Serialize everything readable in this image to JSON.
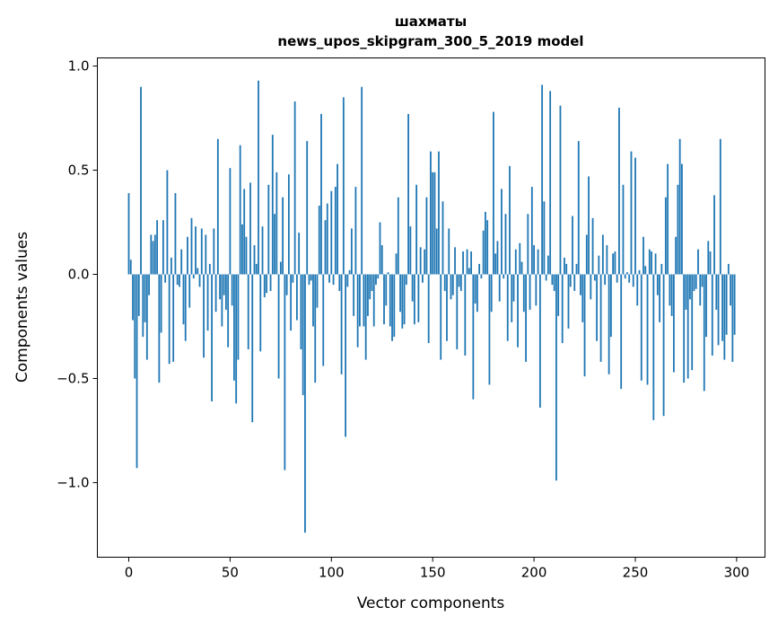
{
  "chart_data": {
    "type": "bar",
    "title": "шахматы",
    "subtitle": "news_upos_skipgram_300_5_2019 model",
    "xlabel": "Vector components",
    "ylabel": "Components values",
    "xlim": [
      -15.5,
      314
    ],
    "ylim": [
      -1.358,
      1.039
    ],
    "xticks": [
      0,
      50,
      100,
      150,
      200,
      250,
      300
    ],
    "xtick_labels": [
      "0",
      "50",
      "100",
      "150",
      "200",
      "250",
      "300"
    ],
    "yticks": [
      -1.0,
      -0.5,
      0.0,
      0.5,
      1.0
    ],
    "ytick_labels": [
      "−1.0",
      "−0.5",
      "0.0",
      "0.5",
      "1.0"
    ],
    "grid": false,
    "color": "#1f77b4",
    "values": [
      0.39,
      0.07,
      -0.22,
      -0.5,
      -0.93,
      -0.2,
      0.9,
      -0.3,
      -0.23,
      -0.41,
      -0.1,
      0.19,
      0.16,
      0.19,
      0.26,
      -0.52,
      -0.28,
      0.26,
      -0.04,
      0.5,
      -0.43,
      0.08,
      -0.42,
      0.39,
      -0.05,
      -0.06,
      0.12,
      -0.24,
      -0.32,
      0.18,
      -0.16,
      0.27,
      -0.02,
      0.23,
      0.03,
      -0.06,
      0.22,
      -0.4,
      0.19,
      -0.27,
      0.05,
      -0.61,
      0.22,
      -0.18,
      0.65,
      -0.12,
      -0.25,
      -0.1,
      -0.17,
      -0.35,
      0.51,
      -0.15,
      -0.51,
      -0.62,
      -0.41,
      0.62,
      0.24,
      0.41,
      0.18,
      -0.36,
      0.44,
      -0.71,
      0.14,
      0.05,
      0.93,
      -0.37,
      0.23,
      -0.11,
      -0.09,
      0.43,
      -0.08,
      0.67,
      0.29,
      0.49,
      -0.5,
      0.06,
      0.37,
      -0.94,
      -0.1,
      0.48,
      -0.27,
      -0.04,
      0.83,
      -0.22,
      0.2,
      -0.36,
      -0.58,
      -1.24,
      0.64,
      -0.05,
      -0.03,
      -0.25,
      -0.52,
      -0.16,
      0.33,
      0.77,
      -0.44,
      0.26,
      0.34,
      -0.04,
      0.4,
      -0.05,
      0.42,
      0.53,
      -0.08,
      -0.48,
      0.85,
      -0.78,
      -0.06,
      0.02,
      0.22,
      -0.2,
      0.42,
      -0.35,
      -0.25,
      0.9,
      -0.25,
      -0.41,
      -0.2,
      -0.12,
      -0.08,
      -0.25,
      -0.05,
      -0.02,
      0.25,
      0.14,
      -0.24,
      -0.15,
      0.01,
      -0.25,
      -0.32,
      -0.3,
      0.1,
      0.37,
      -0.18,
      -0.26,
      -0.24,
      -0.05,
      0.77,
      0.23,
      -0.13,
      -0.24,
      0.43,
      -0.23,
      0.13,
      -0.04,
      0.12,
      0.37,
      -0.33,
      0.59,
      0.49,
      0.49,
      0.22,
      0.59,
      -0.41,
      0.35,
      -0.08,
      -0.32,
      0.22,
      -0.12,
      -0.1,
      0.13,
      -0.36,
      -0.06,
      -0.08,
      0.11,
      -0.39,
      0.12,
      0.03,
      0.11,
      -0.6,
      -0.14,
      -0.18,
      0.05,
      -0.02,
      0.21,
      0.3,
      0.26,
      -0.53,
      -0.18,
      0.78,
      0.1,
      0.16,
      -0.13,
      0.41,
      -0.02,
      0.29,
      -0.32,
      0.52,
      -0.23,
      -0.13,
      0.12,
      -0.35,
      0.15,
      0.06,
      -0.18,
      -0.42,
      0.29,
      -0.17,
      0.42,
      0.14,
      -0.15,
      0.12,
      -0.64,
      0.91,
      0.35,
      -0.03,
      0.09,
      0.88,
      -0.05,
      -0.08,
      -0.99,
      -0.2,
      0.81,
      -0.33,
      0.08,
      0.05,
      -0.26,
      -0.06,
      0.28,
      -0.08,
      0.05,
      0.64,
      -0.1,
      -0.23,
      -0.49,
      0.19,
      0.47,
      -0.12,
      0.27,
      -0.03,
      -0.32,
      0.09,
      -0.42,
      0.19,
      -0.05,
      0.14,
      -0.48,
      -0.3,
      0.1,
      0.11,
      -0.04,
      0.8,
      -0.55,
      0.43,
      -0.02,
      0.01,
      -0.04,
      0.59,
      -0.06,
      0.56,
      -0.15,
      0.02,
      -0.51,
      0.18,
      0.04,
      -0.53,
      0.12,
      0.11,
      -0.7,
      0.1,
      -0.1,
      -0.23,
      0.05,
      -0.68,
      0.37,
      0.53,
      -0.15,
      -0.2,
      -0.47,
      0.18,
      0.43,
      0.65,
      0.53,
      -0.52,
      -0.17,
      -0.5,
      -0.12,
      -0.46,
      -0.08,
      -0.07,
      0.12,
      -0.15,
      -0.06,
      -0.56,
      -0.3,
      0.16,
      0.11,
      -0.39,
      0.38,
      -0.17,
      -0.34,
      0.65,
      -0.32,
      -0.41,
      -0.29,
      0.05,
      -0.15,
      -0.42,
      -0.29
    ]
  }
}
